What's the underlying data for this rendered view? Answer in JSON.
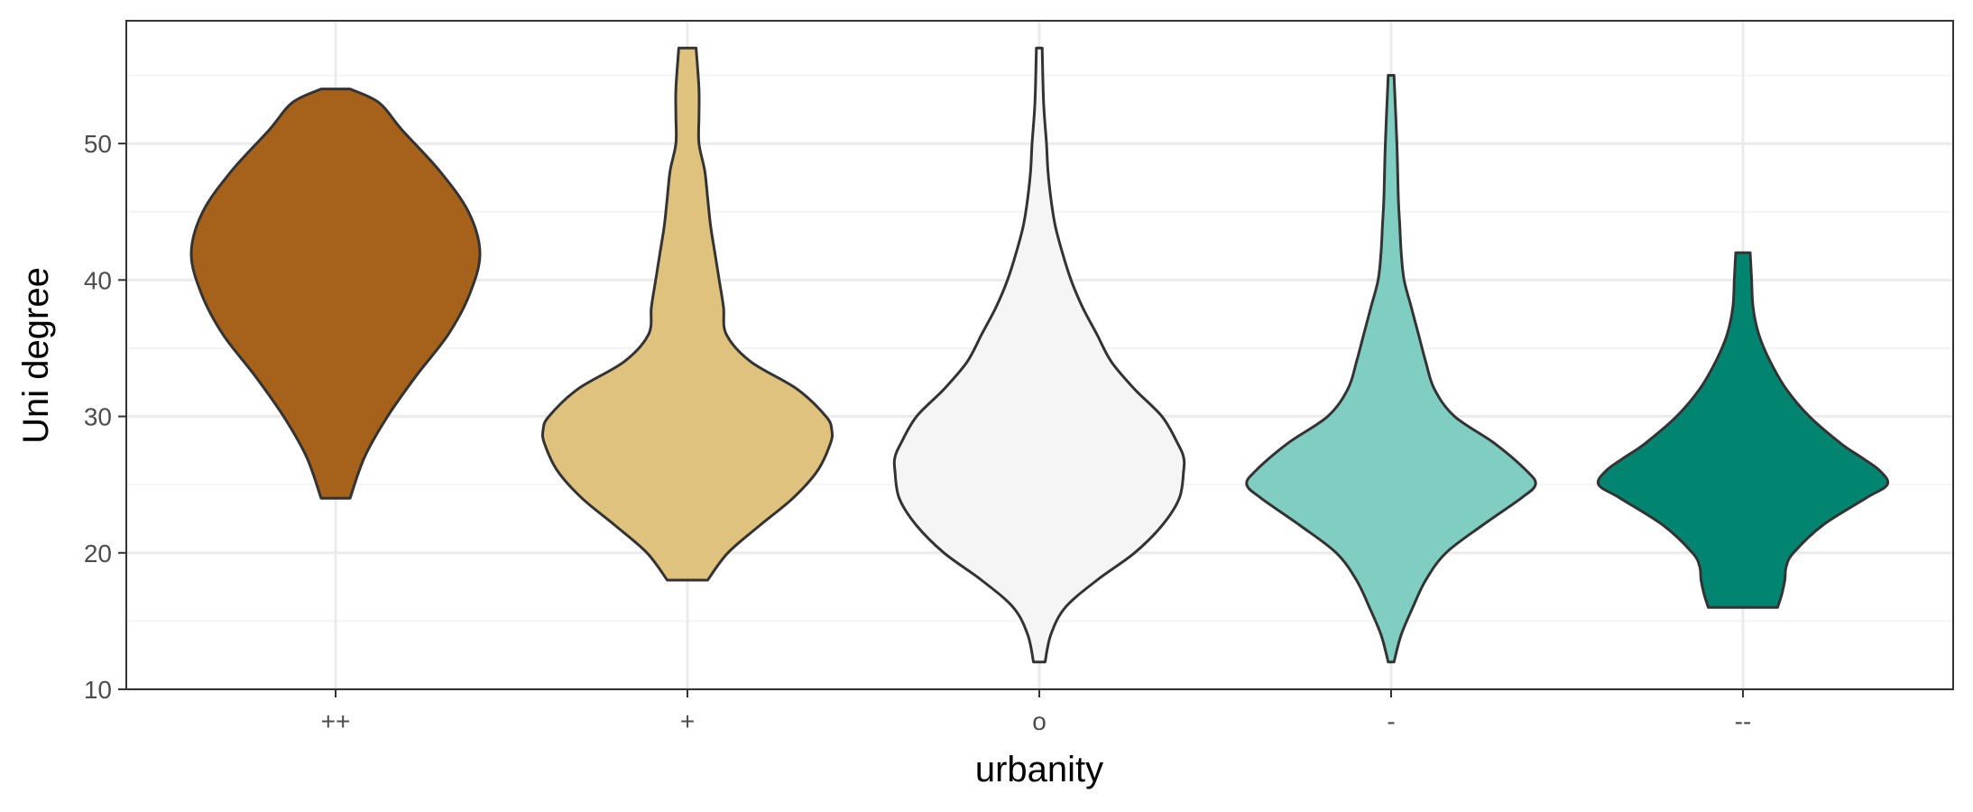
{
  "chart_data": {
    "type": "violin",
    "xlabel": "urbanity",
    "ylabel": "Uni degree",
    "categories": [
      "++",
      "+",
      "o",
      "-",
      "--"
    ],
    "ylim": [
      10,
      59
    ],
    "yticks": [
      10,
      20,
      30,
      40,
      50
    ],
    "grid": true,
    "legend": "none",
    "colors": {
      "violins": [
        "#A6611A",
        "#DFC27D",
        "#F5F5F5",
        "#80CDC1",
        "#018571"
      ],
      "outline": "#333333",
      "grid_major": "#ebebeb",
      "grid_minor": "#f4f4f4",
      "panel_border": "#333333"
    },
    "series": [
      {
        "category": "++",
        "min": 24,
        "max": 54,
        "profile": [
          [
            24,
            0.1
          ],
          [
            27,
            0.2
          ],
          [
            30,
            0.36
          ],
          [
            33,
            0.56
          ],
          [
            36,
            0.78
          ],
          [
            39,
            0.93
          ],
          [
            42,
            1.0
          ],
          [
            45,
            0.92
          ],
          [
            48,
            0.72
          ],
          [
            51,
            0.46
          ],
          [
            53,
            0.3
          ],
          [
            54,
            0.1
          ]
        ]
      },
      {
        "category": "+",
        "min": 18,
        "max": 57,
        "profile": [
          [
            18,
            0.14
          ],
          [
            20,
            0.28
          ],
          [
            22,
            0.5
          ],
          [
            24,
            0.73
          ],
          [
            26,
            0.9
          ],
          [
            28,
            0.99
          ],
          [
            29,
            1.0
          ],
          [
            30,
            0.96
          ],
          [
            32,
            0.76
          ],
          [
            34,
            0.44
          ],
          [
            36,
            0.27
          ],
          [
            38,
            0.25
          ],
          [
            40,
            0.22
          ],
          [
            42,
            0.19
          ],
          [
            44,
            0.16
          ],
          [
            46,
            0.14
          ],
          [
            48,
            0.12
          ],
          [
            50,
            0.08
          ],
          [
            52,
            0.08
          ],
          [
            54,
            0.08
          ],
          [
            57,
            0.06
          ]
        ]
      },
      {
        "category": "o",
        "min": 12,
        "max": 57,
        "profile": [
          [
            12,
            0.04
          ],
          [
            14,
            0.08
          ],
          [
            16,
            0.18
          ],
          [
            18,
            0.4
          ],
          [
            20,
            0.66
          ],
          [
            22,
            0.85
          ],
          [
            24,
            0.97
          ],
          [
            26,
            1.0
          ],
          [
            27,
            1.0
          ],
          [
            28,
            0.96
          ],
          [
            30,
            0.85
          ],
          [
            32,
            0.66
          ],
          [
            34,
            0.5
          ],
          [
            36,
            0.4
          ],
          [
            38,
            0.3
          ],
          [
            40,
            0.22
          ],
          [
            42,
            0.16
          ],
          [
            44,
            0.11
          ],
          [
            46,
            0.08
          ],
          [
            48,
            0.06
          ],
          [
            50,
            0.05
          ],
          [
            53,
            0.03
          ],
          [
            57,
            0.02
          ]
        ]
      },
      {
        "category": "-",
        "min": 12,
        "max": 55,
        "profile": [
          [
            12,
            0.02
          ],
          [
            14,
            0.07
          ],
          [
            16,
            0.15
          ],
          [
            18,
            0.24
          ],
          [
            20,
            0.38
          ],
          [
            22,
            0.63
          ],
          [
            24,
            0.9
          ],
          [
            25,
            1.0
          ],
          [
            26,
            0.94
          ],
          [
            28,
            0.72
          ],
          [
            30,
            0.44
          ],
          [
            32,
            0.3
          ],
          [
            34,
            0.24
          ],
          [
            36,
            0.19
          ],
          [
            38,
            0.14
          ],
          [
            40,
            0.09
          ],
          [
            42,
            0.07
          ],
          [
            44,
            0.06
          ],
          [
            46,
            0.05
          ],
          [
            50,
            0.04
          ],
          [
            55,
            0.02
          ]
        ]
      },
      {
        "category": "--",
        "min": 16,
        "max": 42,
        "profile": [
          [
            16,
            0.24
          ],
          [
            17,
            0.27
          ],
          [
            18,
            0.29
          ],
          [
            19,
            0.3
          ],
          [
            20,
            0.35
          ],
          [
            22,
            0.55
          ],
          [
            24,
            0.85
          ],
          [
            25,
            1.0
          ],
          [
            26,
            0.95
          ],
          [
            27,
            0.82
          ],
          [
            28,
            0.68
          ],
          [
            30,
            0.46
          ],
          [
            32,
            0.3
          ],
          [
            34,
            0.19
          ],
          [
            36,
            0.11
          ],
          [
            38,
            0.07
          ],
          [
            40,
            0.06
          ],
          [
            42,
            0.05
          ]
        ]
      }
    ]
  }
}
